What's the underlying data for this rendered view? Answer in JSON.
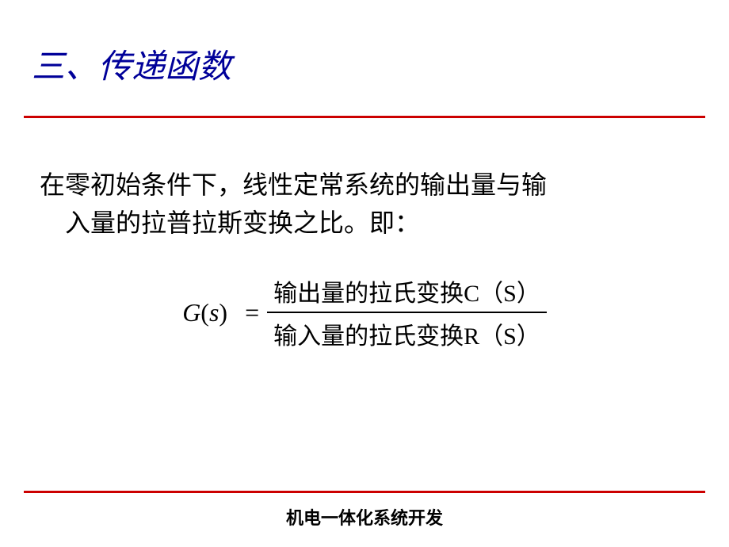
{
  "slide": {
    "title": "三、传递函数",
    "description_line1": "在零初始条件下，线性定常系统的输出量与输",
    "description_line2": "入量的拉普拉斯变换之比。即：",
    "formula": {
      "lhs_g": "G",
      "lhs_s": "s",
      "equals": "=",
      "numerator_text": "输出量的拉氏变换",
      "numerator_var": "C",
      "numerator_arg": "S",
      "denominator_text": "输入量的拉氏变换",
      "denominator_var": "R",
      "denominator_arg": "S"
    },
    "footer": "机电一体化系统开发"
  },
  "style": {
    "title_color": "#000099",
    "divider_color": "#cc0000",
    "text_color": "#000000",
    "background_color": "#ffffff",
    "title_fontsize": 42,
    "body_fontsize": 32,
    "formula_fontsize": 30,
    "footer_fontsize": 22,
    "divider_height": 3
  }
}
